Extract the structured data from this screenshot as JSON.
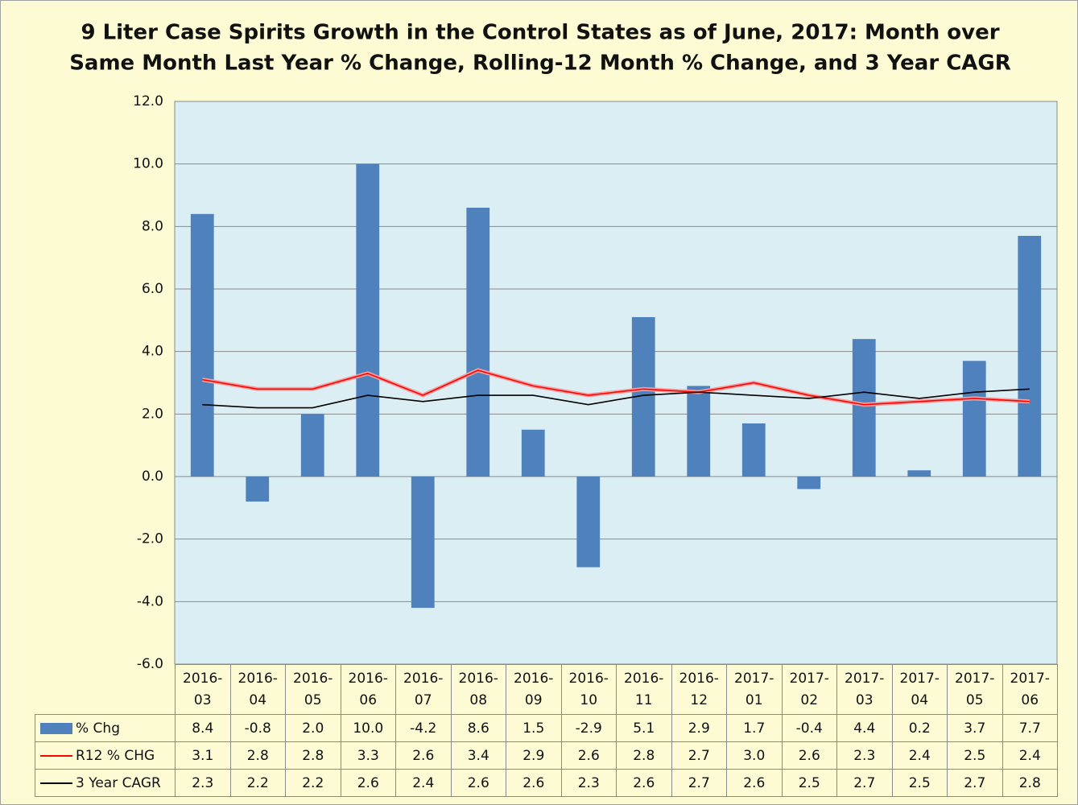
{
  "chart_data": {
    "type": "bar",
    "title": [
      "9 Liter Case Spirits Growth in the Control States as of June, 2017:  Month over",
      "Same Month Last Year % Change, Rolling-12 Month % Change, and 3 Year CAGR"
    ],
    "categories": [
      "2016-03",
      "2016-04",
      "2016-05",
      "2016-06",
      "2016-07",
      "2016-08",
      "2016-09",
      "2016-10",
      "2016-11",
      "2016-12",
      "2017-01",
      "2017-02",
      "2017-03",
      "2017-04",
      "2017-05",
      "2017-06"
    ],
    "series": [
      {
        "name": "% Chg",
        "type": "bar",
        "color": "#4f81bd",
        "values": [
          8.4,
          -0.8,
          2.0,
          10.0,
          -4.2,
          8.6,
          1.5,
          -2.9,
          5.1,
          2.9,
          1.7,
          -0.4,
          4.4,
          0.2,
          3.7,
          7.7
        ],
        "value_labels": [
          "8.4",
          "-0.8",
          "2.0",
          "10.0",
          "-4.2",
          "8.6",
          "1.5",
          "-2.9",
          "5.1",
          "2.9",
          "1.7",
          "-0.4",
          "4.4",
          "0.2",
          "3.7",
          "7.7"
        ]
      },
      {
        "name": "R12 % CHG",
        "type": "line",
        "color": "#ff0000",
        "values": [
          3.1,
          2.8,
          2.8,
          3.3,
          2.6,
          3.4,
          2.9,
          2.6,
          2.8,
          2.7,
          3.0,
          2.6,
          2.3,
          2.4,
          2.5,
          2.4
        ],
        "value_labels": [
          "3.1",
          "2.8",
          "2.8",
          "3.3",
          "2.6",
          "3.4",
          "2.9",
          "2.6",
          "2.8",
          "2.7",
          "3.0",
          "2.6",
          "2.3",
          "2.4",
          "2.5",
          "2.4"
        ]
      },
      {
        "name": "3 Year CAGR",
        "type": "line",
        "color": "#000000",
        "values": [
          2.3,
          2.2,
          2.2,
          2.6,
          2.4,
          2.6,
          2.6,
          2.3,
          2.6,
          2.7,
          2.6,
          2.5,
          2.7,
          2.5,
          2.7,
          2.8
        ],
        "value_labels": [
          "2.3",
          "2.2",
          "2.2",
          "2.6",
          "2.4",
          "2.6",
          "2.6",
          "2.3",
          "2.6",
          "2.7",
          "2.6",
          "2.5",
          "2.7",
          "2.5",
          "2.7",
          "2.8"
        ]
      }
    ],
    "ylim": [
      -6,
      12
    ],
    "yticks": [
      {
        "value": -6,
        "label": "-6.0"
      },
      {
        "value": -4,
        "label": "-4.0"
      },
      {
        "value": -2,
        "label": "-2.0"
      },
      {
        "value": 0,
        "label": "0.0"
      },
      {
        "value": 2,
        "label": "2.0"
      },
      {
        "value": 4,
        "label": "4.0"
      },
      {
        "value": 6,
        "label": "6.0"
      },
      {
        "value": 8,
        "label": "8.0"
      },
      {
        "value": 10,
        "label": "10.0"
      },
      {
        "value": 12,
        "label": "12.0"
      }
    ],
    "grid": true
  }
}
